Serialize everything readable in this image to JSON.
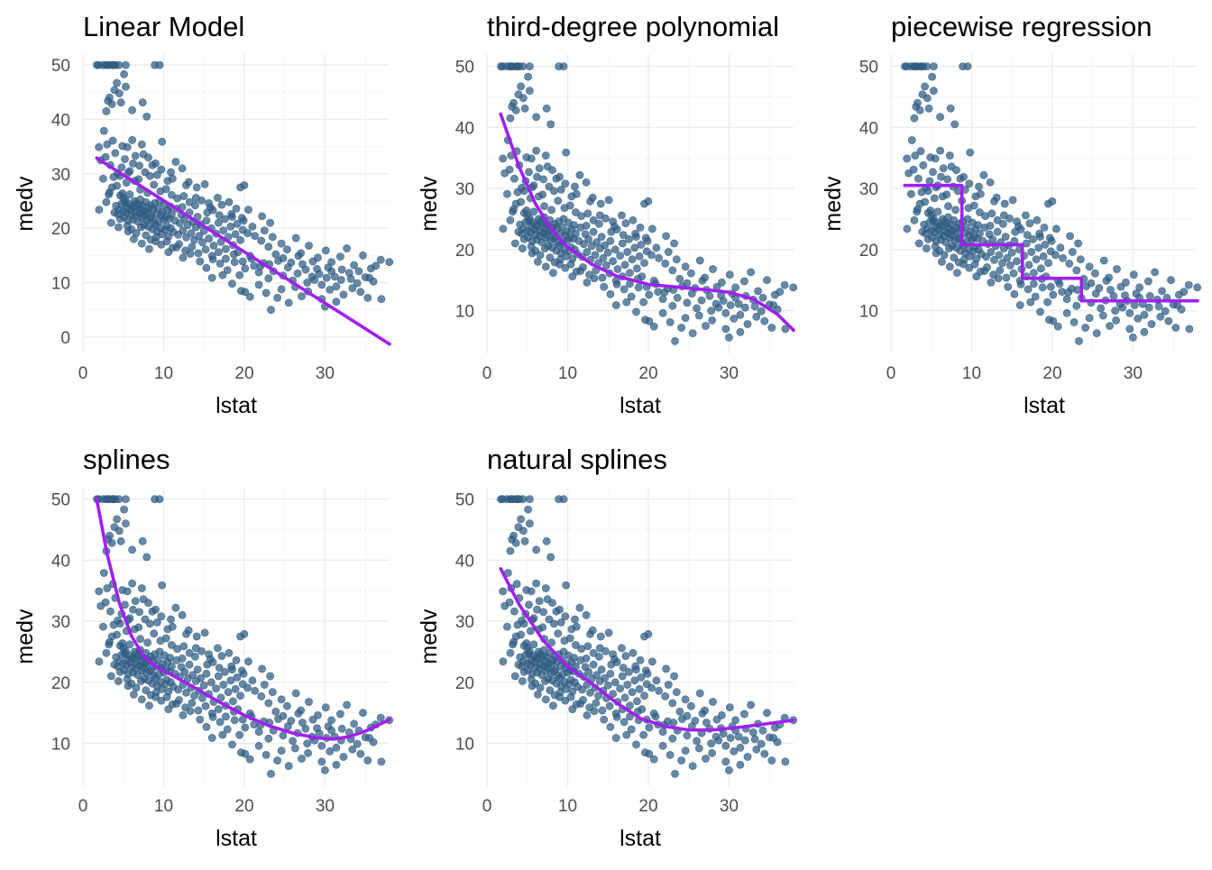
{
  "colors": {
    "points": "#2e5b82",
    "fit_line": "#a020f0",
    "grid": "#ebebeb",
    "background": "#ffffff"
  },
  "chart_data": [
    {
      "type": "scatter",
      "title": "Linear Model",
      "xlabel": "lstat",
      "ylabel": "medv",
      "xlim": [
        0,
        38
      ],
      "ylim": [
        -3,
        52
      ],
      "xticks": [
        0,
        10,
        20,
        30
      ],
      "yticks": [
        0,
        10,
        20,
        30,
        40,
        50
      ],
      "grid": true,
      "fit": {
        "kind": "linear",
        "x": [
          1.7,
          38.0
        ],
        "y": [
          32.9,
          -1.3
        ]
      }
    },
    {
      "type": "scatter",
      "title": "third-degree polynomial",
      "xlabel": "lstat",
      "ylabel": "medv",
      "xlim": [
        0,
        38
      ],
      "ylim": [
        3,
        52
      ],
      "xticks": [
        0,
        10,
        20,
        30
      ],
      "yticks": [
        10,
        20,
        30,
        40,
        50
      ],
      "grid": true,
      "fit": {
        "kind": "polynomial",
        "x": [
          1.7,
          4,
          6,
          8,
          10,
          13,
          16,
          20,
          24,
          28,
          30,
          33,
          36,
          38
        ],
        "y": [
          42.2,
          33.5,
          27.5,
          23.3,
          20.4,
          17.6,
          15.7,
          14.3,
          13.8,
          13.3,
          13.0,
          11.9,
          9.4,
          6.8
        ]
      }
    },
    {
      "type": "scatter",
      "title": "piecewise regression",
      "xlabel": "lstat",
      "ylabel": "medv",
      "xlim": [
        0,
        38
      ],
      "ylim": [
        3,
        52
      ],
      "xticks": [
        0,
        10,
        20,
        30
      ],
      "yticks": [
        10,
        20,
        30,
        40,
        50
      ],
      "grid": true,
      "fit": {
        "kind": "step",
        "x": [
          1.7,
          8.8,
          8.8,
          16.3,
          16.3,
          23.6,
          23.6,
          38.0
        ],
        "y": [
          30.5,
          30.5,
          20.8,
          20.8,
          15.3,
          15.3,
          11.6,
          11.6
        ]
      }
    },
    {
      "type": "scatter",
      "title": "splines",
      "xlabel": "lstat",
      "ylabel": "medv",
      "xlim": [
        0,
        38
      ],
      "ylim": [
        3,
        52
      ],
      "xticks": [
        0,
        10,
        20,
        30
      ],
      "yticks": [
        10,
        20,
        30,
        40,
        50
      ],
      "grid": true,
      "fit": {
        "kind": "spline",
        "x": [
          1.7,
          3,
          4.5,
          6,
          7.5,
          9,
          11,
          14,
          17,
          20,
          23,
          26,
          29,
          31,
          33,
          35,
          38
        ],
        "y": [
          50.0,
          41.0,
          33.0,
          27.6,
          24.3,
          22.6,
          21.2,
          19.0,
          16.7,
          14.6,
          12.9,
          11.7,
          10.9,
          10.7,
          11.1,
          12.0,
          13.9
        ]
      }
    },
    {
      "type": "scatter",
      "title": "natural splines",
      "xlabel": "lstat",
      "ylabel": "medv",
      "xlim": [
        0,
        38
      ],
      "ylim": [
        3,
        52
      ],
      "xticks": [
        0,
        10,
        20,
        30
      ],
      "yticks": [
        10,
        20,
        30,
        40,
        50
      ],
      "grid": true,
      "fit": {
        "kind": "natural-spline",
        "x": [
          1.7,
          4,
          7,
          10,
          13,
          16,
          19,
          22,
          25,
          28,
          31,
          34,
          38
        ],
        "y": [
          38.6,
          32.7,
          26.8,
          22.6,
          19.8,
          16.7,
          14.1,
          12.8,
          12.2,
          12.2,
          12.6,
          13.1,
          13.8
        ]
      }
    }
  ],
  "scatter_points": [
    [
      1.73,
      50.0
    ],
    [
      1.92,
      50.0
    ],
    [
      2.47,
      50.0
    ],
    [
      2.88,
      50.0
    ],
    [
      2.96,
      50.0
    ],
    [
      3.26,
      50.0
    ],
    [
      3.7,
      50.0
    ],
    [
      3.73,
      50.0
    ],
    [
      4.0,
      50.0
    ],
    [
      4.45,
      50.0
    ],
    [
      5.3,
      50.0
    ],
    [
      8.9,
      50.0
    ],
    [
      9.5,
      50.0
    ],
    [
      1.98,
      34.9
    ],
    [
      2.6,
      37.9
    ],
    [
      2.9,
      41.5
    ],
    [
      3.1,
      43.4
    ],
    [
      3.3,
      44.0
    ],
    [
      3.6,
      42.8
    ],
    [
      3.9,
      45.4
    ],
    [
      4.2,
      46.7
    ],
    [
      4.5,
      44.8
    ],
    [
      4.7,
      43.1
    ],
    [
      5.1,
      48.3
    ],
    [
      5.3,
      46.0
    ],
    [
      6.1,
      41.7
    ],
    [
      7.4,
      43.1
    ],
    [
      7.9,
      40.5
    ],
    [
      2.2,
      32.5
    ],
    [
      2.5,
      29.1
    ],
    [
      2.8,
      33.1
    ],
    [
      3.0,
      35.4
    ],
    [
      3.4,
      31.6
    ],
    [
      3.7,
      36.1
    ],
    [
      4.0,
      33.8
    ],
    [
      4.3,
      30.1
    ],
    [
      4.6,
      29.6
    ],
    [
      4.9,
      35.1
    ],
    [
      5.2,
      32.7
    ],
    [
      5.5,
      34.9
    ],
    [
      5.8,
      30.5
    ],
    [
      6.1,
      36.2
    ],
    [
      6.5,
      33.3
    ],
    [
      7.0,
      31.5
    ],
    [
      7.3,
      35.4
    ],
    [
      7.7,
      30.3
    ],
    [
      8.1,
      33.0
    ],
    [
      8.6,
      31.6
    ],
    [
      9.2,
      29.8
    ],
    [
      9.8,
      35.9
    ],
    [
      10.5,
      28.7
    ],
    [
      11.1,
      29.1
    ],
    [
      12.3,
      31.0
    ],
    [
      12.8,
      27.9
    ],
    [
      15.1,
      28.1
    ],
    [
      19.5,
      27.5
    ],
    [
      20.0,
      27.9
    ],
    [
      2.9,
      24.8
    ],
    [
      3.3,
      26.6
    ],
    [
      3.6,
      27.5
    ],
    [
      3.9,
      22.9
    ],
    [
      4.1,
      24.1
    ],
    [
      4.3,
      22.6
    ],
    [
      4.5,
      23.4
    ],
    [
      4.6,
      21.7
    ],
    [
      4.8,
      24.5
    ],
    [
      4.9,
      26.4
    ],
    [
      5.0,
      23.1
    ],
    [
      5.1,
      22.0
    ],
    [
      5.2,
      24.7
    ],
    [
      5.3,
      25.1
    ],
    [
      5.4,
      22.8
    ],
    [
      5.5,
      23.7
    ],
    [
      5.6,
      21.4
    ],
    [
      5.7,
      24.4
    ],
    [
      5.8,
      26.2
    ],
    [
      5.9,
      23.3
    ],
    [
      6.0,
      22.5
    ],
    [
      6.1,
      24.0
    ],
    [
      6.2,
      21.6
    ],
    [
      6.3,
      23.8
    ],
    [
      6.4,
      25.0
    ],
    [
      6.5,
      22.2
    ],
    [
      6.6,
      24.6
    ],
    [
      6.7,
      23.0
    ],
    [
      6.8,
      21.2
    ],
    [
      6.9,
      24.3
    ],
    [
      7.0,
      22.7
    ],
    [
      7.1,
      25.3
    ],
    [
      7.2,
      23.5
    ],
    [
      7.3,
      21.9
    ],
    [
      7.4,
      24.1
    ],
    [
      7.5,
      22.4
    ],
    [
      7.6,
      20.6
    ],
    [
      7.7,
      23.1
    ],
    [
      7.8,
      24.8
    ],
    [
      7.9,
      21.5
    ],
    [
      8.0,
      22.9
    ],
    [
      8.1,
      20.3
    ],
    [
      8.2,
      23.6
    ],
    [
      8.3,
      21.8
    ],
    [
      8.4,
      24.2
    ],
    [
      8.5,
      22.1
    ],
    [
      8.6,
      19.8
    ],
    [
      8.7,
      23.4
    ],
    [
      8.8,
      21.1
    ],
    [
      8.9,
      24.6
    ],
    [
      9.0,
      20.7
    ],
    [
      9.1,
      22.6
    ],
    [
      9.2,
      19.4
    ],
    [
      9.3,
      23.7
    ],
    [
      9.4,
      21.3
    ],
    [
      9.5,
      25.0
    ],
    [
      9.6,
      20.1
    ],
    [
      9.7,
      22.4
    ],
    [
      9.8,
      18.9
    ],
    [
      9.9,
      23.0
    ],
    [
      10.0,
      21.6
    ],
    [
      10.1,
      24.4
    ],
    [
      10.2,
      19.7
    ],
    [
      10.3,
      22.0
    ],
    [
      10.4,
      20.4
    ],
    [
      10.5,
      23.3
    ],
    [
      10.6,
      18.5
    ],
    [
      10.7,
      21.8
    ],
    [
      10.8,
      24.0
    ],
    [
      10.9,
      20.0
    ],
    [
      11.0,
      22.6
    ],
    [
      11.2,
      19.3
    ],
    [
      11.4,
      21.4
    ],
    [
      11.6,
      23.6
    ],
    [
      11.8,
      18.8
    ],
    [
      12.0,
      20.9
    ],
    [
      12.2,
      22.5
    ],
    [
      12.4,
      19.6
    ],
    [
      12.6,
      21.7
    ],
    [
      12.8,
      18.3
    ],
    [
      13.0,
      20.6
    ],
    [
      13.2,
      22.9
    ],
    [
      13.4,
      19.1
    ],
    [
      13.6,
      21.2
    ],
    [
      13.8,
      17.8
    ],
    [
      14.0,
      20.2
    ],
    [
      14.2,
      22.1
    ],
    [
      14.4,
      18.6
    ],
    [
      14.6,
      20.7
    ],
    [
      14.8,
      17.4
    ],
    [
      15.0,
      19.5
    ],
    [
      15.3,
      21.4
    ],
    [
      15.6,
      18.1
    ],
    [
      15.9,
      20.0
    ],
    [
      16.2,
      16.8
    ],
    [
      16.5,
      19.0
    ],
    [
      16.8,
      21.0
    ],
    [
      17.1,
      17.5
    ],
    [
      17.4,
      19.6
    ],
    [
      17.7,
      16.2
    ],
    [
      18.0,
      18.4
    ],
    [
      18.3,
      20.3
    ],
    [
      18.6,
      16.9
    ],
    [
      18.9,
      18.9
    ],
    [
      19.2,
      15.6
    ],
    [
      19.5,
      17.8
    ],
    [
      19.8,
      19.7
    ],
    [
      2.0,
      23.4
    ],
    [
      3.5,
      21.0
    ],
    [
      4.4,
      20.2
    ],
    [
      5.6,
      19.4
    ],
    [
      6.3,
      18.0
    ],
    [
      7.3,
      17.2
    ],
    [
      8.2,
      16.2
    ],
    [
      9.0,
      17.6
    ],
    [
      10.6,
      15.6
    ],
    [
      11.6,
      16.5
    ],
    [
      12.4,
      14.6
    ],
    [
      13.3,
      15.3
    ],
    [
      14.5,
      13.9
    ],
    [
      15.3,
      12.7
    ],
    [
      16.1,
      14.3
    ],
    [
      17.0,
      13.5
    ],
    [
      17.9,
      12.3
    ],
    [
      18.8,
      13.8
    ],
    [
      19.4,
      11.4
    ],
    [
      20.1,
      12.6
    ],
    [
      20.7,
      14.9
    ],
    [
      21.2,
      13.1
    ],
    [
      21.8,
      11.9
    ],
    [
      22.4,
      13.6
    ],
    [
      23.0,
      10.8
    ],
    [
      23.6,
      12.1
    ],
    [
      24.2,
      14.0
    ],
    [
      24.8,
      11.3
    ],
    [
      25.4,
      12.8
    ],
    [
      26.0,
      10.4
    ],
    [
      26.6,
      11.7
    ],
    [
      27.2,
      13.4
    ],
    [
      27.8,
      10.0
    ],
    [
      28.4,
      11.1
    ],
    [
      29.0,
      12.5
    ],
    [
      29.6,
      9.6
    ],
    [
      30.2,
      10.9
    ],
    [
      30.8,
      12.1
    ],
    [
      31.4,
      9.3
    ],
    [
      32.0,
      10.5
    ],
    [
      33.0,
      11.8
    ],
    [
      34.0,
      9.9
    ],
    [
      35.0,
      11.0
    ],
    [
      36.0,
      10.2
    ],
    [
      12.3,
      23.9
    ],
    [
      14.0,
      25.6
    ],
    [
      15.8,
      23.8
    ],
    [
      17.2,
      24.3
    ],
    [
      18.5,
      22.1
    ],
    [
      19.9,
      21.4
    ],
    [
      21.0,
      20.3
    ],
    [
      22.5,
      19.6
    ],
    [
      23.5,
      18.4
    ],
    [
      24.6,
      17.2
    ],
    [
      25.3,
      16.1
    ],
    [
      26.4,
      18.2
    ],
    [
      27.0,
      15.4
    ],
    [
      28.0,
      16.8
    ],
    [
      29.1,
      14.6
    ],
    [
      30.1,
      15.9
    ],
    [
      30.8,
      13.8
    ],
    [
      31.9,
      14.8
    ],
    [
      32.7,
      16.3
    ],
    [
      33.6,
      13.2
    ],
    [
      34.7,
      15.0
    ],
    [
      35.7,
      12.6
    ],
    [
      36.9,
      14.2
    ],
    [
      37.97,
      13.8
    ],
    [
      16.0,
      10.9
    ],
    [
      17.3,
      11.4
    ],
    [
      18.5,
      9.8
    ],
    [
      19.6,
      8.5
    ],
    [
      20.1,
      8.3
    ],
    [
      20.7,
      7.4
    ],
    [
      21.8,
      9.6
    ],
    [
      22.7,
      8.1
    ],
    [
      23.3,
      5.0
    ],
    [
      24.1,
      7.2
    ],
    [
      24.6,
      8.8
    ],
    [
      25.5,
      6.3
    ],
    [
      26.3,
      9.2
    ],
    [
      27.1,
      7.5
    ],
    [
      27.9,
      8.4
    ],
    [
      28.7,
      10.5
    ],
    [
      29.6,
      7.0
    ],
    [
      30.0,
      5.6
    ],
    [
      30.6,
      8.7
    ],
    [
      31.4,
      6.5
    ],
    [
      32.3,
      7.8
    ],
    [
      33.4,
      9.0
    ],
    [
      34.4,
      8.3
    ],
    [
      35.3,
      7.2
    ],
    [
      36.98,
      7.0
    ],
    [
      4.6,
      26.0
    ],
    [
      5.4,
      28.4
    ],
    [
      6.4,
      28.7
    ],
    [
      7.1,
      27.1
    ],
    [
      8.0,
      26.5
    ],
    [
      8.8,
      28.0
    ],
    [
      9.6,
      26.8
    ],
    [
      10.3,
      27.2
    ],
    [
      11.0,
      26.1
    ],
    [
      11.7,
      25.5
    ],
    [
      12.5,
      25.9
    ],
    [
      13.2,
      24.8
    ],
    [
      13.9,
      24.2
    ],
    [
      14.7,
      25.1
    ],
    [
      15.4,
      22.9
    ],
    [
      16.1,
      23.3
    ],
    [
      16.9,
      22.4
    ],
    [
      17.6,
      21.7
    ],
    [
      18.4,
      22.6
    ],
    [
      19.1,
      20.8
    ],
    [
      19.7,
      21.9
    ],
    [
      20.4,
      19.1
    ],
    [
      21.3,
      18.6
    ],
    [
      22.1,
      17.7
    ],
    [
      23.0,
      16.6
    ],
    [
      23.9,
      15.2
    ],
    [
      24.8,
      14.5
    ],
    [
      25.8,
      13.7
    ],
    [
      26.7,
      14.9
    ],
    [
      27.6,
      12.4
    ],
    [
      28.5,
      13.9
    ],
    [
      29.3,
      11.6
    ],
    [
      30.4,
      12.8
    ],
    [
      31.2,
      11.1
    ],
    [
      32.1,
      12.4
    ],
    [
      33.2,
      10.7
    ],
    [
      34.2,
      12.1
    ],
    [
      35.5,
      10.9
    ],
    [
      36.3,
      13.1
    ],
    [
      3.2,
      26.2
    ],
    [
      3.8,
      29.4
    ],
    [
      4.2,
      27.8
    ],
    [
      4.8,
      31.2
    ],
    [
      5.6,
      30.2
    ],
    [
      6.2,
      31.9
    ],
    [
      6.9,
      29.0
    ],
    [
      7.5,
      33.6
    ],
    [
      8.3,
      29.6
    ],
    [
      9.0,
      31.9
    ],
    [
      9.7,
      30.8
    ],
    [
      10.9,
      30.3
    ],
    [
      11.5,
      32.2
    ],
    [
      13.1,
      28.5
    ],
    [
      14.1,
      27.5
    ],
    [
      15.6,
      24.6
    ],
    [
      16.7,
      25.6
    ],
    [
      18.1,
      24.8
    ],
    [
      19.0,
      23.6
    ],
    [
      20.5,
      23.4
    ],
    [
      22.2,
      22.2
    ],
    [
      23.2,
      21.0
    ],
    [
      5.0,
      25.6
    ],
    [
      5.5,
      20.5
    ],
    [
      6.0,
      19.8
    ],
    [
      6.6,
      19.1
    ],
    [
      7.2,
      20.2
    ],
    [
      7.8,
      18.7
    ],
    [
      8.4,
      17.9
    ],
    [
      9.1,
      18.4
    ],
    [
      9.7,
      17.0
    ],
    [
      10.4,
      17.6
    ],
    [
      11.1,
      16.4
    ],
    [
      11.9,
      17.1
    ],
    [
      12.7,
      15.9
    ],
    [
      13.5,
      16.6
    ],
    [
      14.3,
      15.4
    ],
    [
      15.2,
      16.1
    ],
    [
      16.0,
      14.9
    ],
    [
      16.8,
      15.6
    ],
    [
      17.7,
      14.4
    ],
    [
      18.7,
      15.2
    ],
    [
      19.8,
      13.9
    ],
    [
      20.9,
      14.4
    ],
    [
      22.0,
      13.0
    ],
    [
      23.1,
      13.4
    ]
  ]
}
